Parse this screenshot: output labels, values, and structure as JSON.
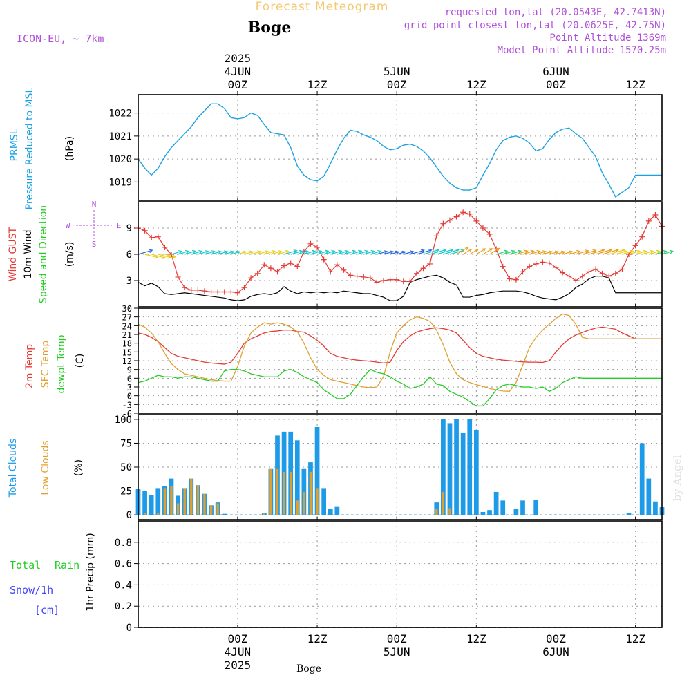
{
  "header": {
    "main_title": "Forecast Meteogram",
    "station": "Boge",
    "model": "ICON-EU, ~ 7km",
    "requested": "requested lon,lat (20.0543E, 42.7413N)",
    "grid_point": "grid point closest lon,lat (20.0625E, 42.75N)",
    "point_altitude": "Point Altitude 1369m",
    "model_altitude": "Model Point Altitude 1570.25m",
    "footer_station": "Boge",
    "watermark": "by Angel"
  },
  "time_axis": {
    "start_hour": -15,
    "end_hour": 64,
    "top_ticks": [
      {
        "hour": 0,
        "lines": [
          "2025",
          "4JUN",
          "00Z"
        ]
      },
      {
        "hour": 12,
        "lines": [
          "12Z"
        ]
      },
      {
        "hour": 24,
        "lines": [
          "5JUN",
          "00Z"
        ]
      },
      {
        "hour": 36,
        "lines": [
          "12Z"
        ]
      },
      {
        "hour": 48,
        "lines": [
          "6JUN",
          "00Z"
        ]
      },
      {
        "hour": 60,
        "lines": [
          "12Z"
        ]
      }
    ],
    "bottom_ticks": [
      {
        "hour": 0,
        "lines": [
          "00Z",
          "4JUN",
          "2025"
        ]
      },
      {
        "hour": 12,
        "lines": [
          "12Z"
        ]
      },
      {
        "hour": 24,
        "lines": [
          "00Z",
          "5JUN"
        ]
      },
      {
        "hour": 36,
        "lines": [
          "12Z"
        ]
      },
      {
        "hour": 48,
        "lines": [
          "00Z",
          "6JUN"
        ]
      },
      {
        "hour": 60,
        "lines": [
          "12Z"
        ]
      }
    ]
  },
  "colors": {
    "pressure": "#1ba1e2",
    "gust": "#e53935",
    "wind": "#000000",
    "t2m": "#e53935",
    "sfc": "#e0a030",
    "dew": "#22cc22",
    "total_cloud": "#1e9be8",
    "low_cloud": "#e0a030",
    "title": "#f5c874",
    "purple": "#b04fd8",
    "rain": "#22cc22",
    "snow": "#4444ff"
  },
  "chart_data": [
    {
      "type": "line",
      "name": "pressure",
      "title": "PRMSL Pressure Reduced to MSL",
      "ylabel": "(hPa)",
      "label_lines": [
        "PRMSL",
        "Pressure Reduced to MSL"
      ],
      "ylim": [
        1018.2,
        1022.8
      ],
      "yticks": [
        1019,
        1020,
        1021,
        1022
      ],
      "x": [
        -15,
        -14,
        -13,
        -12,
        -11,
        -10,
        -9,
        -8,
        -7,
        -6,
        -5,
        -4,
        -3,
        -2,
        -1,
        0,
        1,
        2,
        3,
        4,
        5,
        6,
        7,
        8,
        9,
        10,
        11,
        12,
        13,
        14,
        15,
        16,
        17,
        18,
        19,
        20,
        21,
        22,
        23,
        24,
        25,
        26,
        27,
        28,
        29,
        30,
        31,
        32,
        33,
        34,
        35,
        36,
        37,
        38,
        39,
        40,
        41,
        42,
        43,
        44,
        45,
        46,
        47,
        48,
        49,
        50,
        51,
        52,
        53,
        54,
        55,
        56,
        57,
        58,
        59,
        60,
        61,
        62,
        63,
        64
      ],
      "series": [
        {
          "name": "PRMSL",
          "values": [
            1020.0,
            1019.6,
            1019.3,
            1019.6,
            1020.1,
            1020.5,
            1020.8,
            1021.1,
            1021.4,
            1021.8,
            1022.1,
            1022.4,
            1022.4,
            1022.2,
            1021.8,
            1021.75,
            1021.8,
            1022.0,
            1021.9,
            1021.5,
            1021.15,
            1021.1,
            1021.05,
            1020.5,
            1019.7,
            1019.3,
            1019.1,
            1019.05,
            1019.25,
            1019.8,
            1020.4,
            1020.9,
            1021.25,
            1021.2,
            1021.05,
            1020.95,
            1020.8,
            1020.55,
            1020.4,
            1020.45,
            1020.6,
            1020.65,
            1020.55,
            1020.35,
            1020.05,
            1019.65,
            1019.25,
            1018.95,
            1018.75,
            1018.65,
            1018.65,
            1018.75,
            1019.3,
            1019.8,
            1020.4,
            1020.8,
            1020.95,
            1021.0,
            1020.9,
            1020.7,
            1020.35,
            1020.45,
            1020.85,
            1021.15,
            1021.3,
            1021.35,
            1021.1,
            1020.9,
            1020.5,
            1020.1,
            1019.4,
            1018.9,
            1018.35,
            1018.55,
            1018.75,
            1019.3,
            1019.3,
            1019.3,
            1019.3,
            1019.3
          ]
        }
      ]
    },
    {
      "type": "line",
      "name": "wind",
      "title": "Wind GUST / 10m Wind Speed and Direction",
      "ylabel": "(m/s)",
      "compass": [
        "N",
        "S",
        "W",
        "E"
      ],
      "ylim": [
        0,
        12
      ],
      "yticks": [
        3,
        6,
        9
      ],
      "x": [
        -15,
        -14,
        -13,
        -12,
        -11,
        -10,
        -9,
        -8,
        -7,
        -6,
        -5,
        -4,
        -3,
        -2,
        -1,
        0,
        1,
        2,
        3,
        4,
        5,
        6,
        7,
        8,
        9,
        10,
        11,
        12,
        13,
        14,
        15,
        16,
        17,
        18,
        19,
        20,
        21,
        22,
        23,
        24,
        25,
        26,
        27,
        28,
        29,
        30,
        31,
        32,
        33,
        34,
        35,
        36,
        37,
        38,
        39,
        40,
        41,
        42,
        43,
        44,
        45,
        46,
        47,
        48,
        49,
        50,
        51,
        52,
        53,
        54,
        55,
        56,
        57,
        58,
        59,
        60,
        61,
        62,
        63,
        64
      ],
      "series": [
        {
          "name": "Wind GUST",
          "values": [
            9.0,
            8.7,
            7.9,
            8.0,
            6.8,
            6.0,
            3.4,
            2.2,
            1.9,
            1.9,
            1.8,
            1.7,
            1.7,
            1.7,
            1.7,
            1.6,
            2.2,
            3.3,
            3.8,
            4.8,
            4.4,
            4.0,
            4.7,
            5.0,
            4.6,
            6.3,
            7.2,
            6.8,
            5.4,
            4.0,
            4.8,
            4.2,
            3.6,
            3.5,
            3.4,
            3.3,
            2.8,
            3.0,
            3.1,
            3.1,
            2.9,
            2.9,
            3.8,
            4.4,
            4.9,
            8.1,
            9.5,
            9.9,
            10.3,
            10.8,
            10.6,
            9.8,
            9.0,
            8.3,
            6.6,
            4.6,
            3.2,
            3.1,
            4.0,
            4.6,
            4.9,
            5.1,
            5.0,
            4.5,
            3.9,
            3.5,
            3.0,
            3.5,
            4.0,
            4.3,
            3.8,
            3.5,
            3.8,
            4.3,
            6.0,
            7.0,
            8.0,
            9.8,
            10.5,
            9.2
          ]
        },
        {
          "name": "10m Wind",
          "values": [
            2.8,
            2.4,
            2.7,
            2.3,
            1.5,
            1.4,
            1.5,
            1.6,
            1.5,
            1.4,
            1.3,
            1.2,
            1.1,
            1.0,
            0.8,
            0.7,
            0.8,
            1.2,
            1.4,
            1.5,
            1.4,
            1.6,
            2.3,
            1.8,
            1.5,
            1.7,
            1.6,
            1.7,
            1.6,
            1.7,
            1.6,
            1.8,
            1.7,
            1.6,
            1.5,
            1.5,
            1.3,
            1.1,
            0.7,
            0.7,
            1.2,
            2.8,
            3.1,
            3.3,
            3.5,
            3.6,
            3.3,
            2.8,
            2.5,
            1.1,
            1.1,
            1.3,
            1.4,
            1.6,
            1.7,
            1.8,
            1.8,
            1.8,
            1.7,
            1.5,
            1.2,
            1.0,
            0.9,
            0.8,
            1.1,
            1.5,
            2.2,
            2.6,
            3.2,
            3.5,
            3.5,
            3.3,
            1.6,
            1.6,
            1.6,
            1.6,
            1.6,
            1.6,
            1.6,
            1.6
          ]
        }
      ]
    },
    {
      "type": "line",
      "name": "temperature",
      "title": "2m Temp / SFC Temp / dewpt Temp",
      "ylabel": "(C)",
      "ylim": [
        -6,
        30
      ],
      "yticks": [
        -6,
        -3,
        0,
        3,
        6,
        9,
        12,
        15,
        18,
        21,
        24,
        27,
        30
      ],
      "x": [
        -15,
        -14,
        -13,
        -12,
        -11,
        -10,
        -9,
        -8,
        -7,
        -6,
        -5,
        -4,
        -3,
        -2,
        -1,
        0,
        1,
        2,
        3,
        4,
        5,
        6,
        7,
        8,
        9,
        10,
        11,
        12,
        13,
        14,
        15,
        16,
        17,
        18,
        19,
        20,
        21,
        22,
        23,
        24,
        25,
        26,
        27,
        28,
        29,
        30,
        31,
        32,
        33,
        34,
        35,
        36,
        37,
        38,
        39,
        40,
        41,
        42,
        43,
        44,
        45,
        46,
        47,
        48,
        49,
        50,
        51,
        52,
        53,
        54,
        55,
        56,
        57,
        58,
        59,
        60,
        61,
        62,
        63,
        64
      ],
      "series": [
        {
          "name": "2m Temp",
          "values": [
            21.5,
            21.0,
            20.0,
            18.5,
            16.5,
            14.5,
            13.5,
            13.0,
            12.5,
            12.0,
            11.5,
            11.2,
            11.0,
            10.8,
            11.5,
            14.5,
            18.0,
            19.5,
            20.5,
            21.5,
            22.0,
            22.2,
            22.5,
            22.5,
            22.0,
            21.8,
            20.5,
            19.0,
            17.0,
            14.5,
            13.5,
            13.0,
            12.5,
            12.2,
            12.0,
            11.8,
            11.5,
            11.2,
            11.5,
            15.5,
            18.5,
            20.5,
            21.8,
            22.5,
            23.0,
            23.3,
            23.0,
            22.5,
            21.5,
            19.0,
            16.5,
            14.5,
            13.5,
            13.0,
            12.5,
            12.2,
            12.0,
            11.8,
            11.6,
            11.5,
            11.5,
            11.4,
            12.0,
            15.0,
            17.5,
            19.5,
            20.8,
            21.7,
            22.5,
            23.2,
            23.5,
            23.2,
            22.8,
            21.5,
            20.5,
            19.5,
            19.5,
            19.5,
            19.5,
            19.5
          ]
        },
        {
          "name": "SFC Temp",
          "values": [
            24.5,
            23.5,
            21.5,
            18.5,
            14.5,
            11.0,
            9.0,
            7.5,
            7.0,
            6.5,
            6.0,
            5.5,
            5.2,
            5.0,
            5.0,
            10.0,
            17.0,
            21.5,
            23.5,
            25.0,
            24.5,
            25.0,
            24.5,
            23.5,
            22.0,
            18.0,
            13.0,
            9.0,
            7.0,
            5.5,
            5.0,
            4.5,
            4.0,
            3.5,
            3.0,
            2.8,
            3.0,
            6.5,
            15.0,
            21.5,
            24.0,
            26.0,
            27.0,
            26.5,
            25.5,
            22.5,
            17.5,
            11.5,
            7.5,
            5.5,
            4.5,
            3.8,
            3.2,
            2.5,
            2.0,
            1.6,
            1.5,
            4.5,
            10.5,
            16.5,
            20.0,
            22.5,
            24.5,
            26.5,
            28.0,
            27.5,
            24.5,
            20.0,
            19.5,
            19.5,
            19.5,
            19.5,
            19.5,
            19.5,
            19.5,
            19.5,
            19.5,
            19.5,
            19.5,
            19.5
          ]
        },
        {
          "name": "dewpt Temp",
          "values": [
            4.5,
            5.0,
            6.0,
            7.0,
            6.5,
            6.5,
            6.0,
            6.5,
            6.5,
            6.0,
            5.5,
            5.0,
            5.0,
            8.5,
            9.0,
            9.0,
            8.5,
            7.5,
            7.0,
            6.5,
            6.5,
            6.5,
            8.5,
            9.0,
            8.0,
            6.5,
            5.5,
            4.5,
            2.0,
            0.5,
            -1.0,
            -1.0,
            0.5,
            3.5,
            6.5,
            9.0,
            8.0,
            7.5,
            6.5,
            5.0,
            4.0,
            2.5,
            3.0,
            4.0,
            6.5,
            4.0,
            3.5,
            1.5,
            0.5,
            -0.5,
            -2.0,
            -3.5,
            -3.5,
            -1.0,
            2.0,
            3.5,
            4.0,
            3.5,
            3.0,
            3.0,
            2.5,
            3.0,
            1.5,
            2.5,
            4.5,
            5.5,
            6.5,
            6.0,
            6.0,
            6.0,
            6.0,
            6.0,
            6.0,
            6.0,
            6.0,
            6.0,
            6.0,
            6.0,
            6.0,
            6.0
          ]
        }
      ]
    },
    {
      "type": "bar",
      "name": "clouds",
      "title": "Total Clouds / Low Clouds",
      "ylabel": "(%)",
      "ylim": [
        -5,
        105
      ],
      "yticks": [
        0,
        25,
        50,
        75,
        100
      ],
      "x": [
        -15,
        -14,
        -13,
        -12,
        -11,
        -10,
        -9,
        -8,
        -7,
        -6,
        -5,
        -4,
        -3,
        -2,
        -1,
        0,
        1,
        2,
        3,
        4,
        5,
        6,
        7,
        8,
        9,
        10,
        11,
        12,
        13,
        14,
        15,
        16,
        17,
        18,
        19,
        20,
        21,
        22,
        23,
        24,
        25,
        26,
        27,
        28,
        29,
        30,
        31,
        32,
        33,
        34,
        35,
        36,
        37,
        38,
        39,
        40,
        41,
        42,
        43,
        44,
        45,
        46,
        47,
        48,
        49,
        50,
        51,
        52,
        53,
        54,
        55,
        56,
        57,
        58,
        59,
        60,
        61,
        62,
        63,
        64
      ],
      "series": [
        {
          "name": "Total Clouds",
          "values": [
            27,
            25,
            21,
            28,
            30,
            38,
            20,
            28,
            38,
            31,
            22,
            10,
            13,
            1,
            0,
            0,
            0,
            0,
            0,
            2,
            48,
            83,
            87,
            87,
            78,
            48,
            55,
            92,
            28,
            6,
            9,
            0,
            0,
            0,
            0,
            0,
            0,
            0,
            0,
            0,
            0,
            0,
            0,
            0,
            0,
            13,
            100,
            96,
            100,
            86,
            100,
            89,
            3,
            5,
            24,
            15,
            0,
            6,
            15,
            0,
            16,
            0,
            0,
            0,
            0,
            0,
            0,
            0,
            0,
            0,
            0,
            0,
            0,
            0,
            2,
            0,
            75,
            38,
            14,
            8
          ]
        },
        {
          "name": "Low Clouds",
          "values": [
            0,
            2,
            0,
            2,
            28,
            30,
            12,
            28,
            38,
            31,
            22,
            10,
            12,
            0,
            0,
            0,
            0,
            0,
            0,
            2,
            48,
            48,
            45,
            45,
            15,
            24,
            45,
            28,
            0,
            0,
            0,
            0,
            0,
            0,
            0,
            0,
            0,
            0,
            0,
            0,
            0,
            0,
            0,
            0,
            0,
            6,
            24,
            7,
            0,
            0,
            0,
            0,
            0,
            0,
            0,
            0,
            0,
            0,
            0,
            0,
            0,
            0,
            0,
            0,
            0,
            0,
            0,
            0,
            0,
            0,
            0,
            0,
            0,
            0,
            0,
            0,
            0,
            0,
            0,
            0
          ]
        }
      ]
    },
    {
      "type": "bar",
      "name": "precip",
      "title": "1hr Precip",
      "ylabel": "1hr Precip (mm)",
      "legend": [
        "Total",
        "Rain",
        "Snow/1h",
        "[cm]"
      ],
      "ylim": [
        0,
        1
      ],
      "yticks": [
        0,
        0.2,
        0.4,
        0.6,
        0.8
      ],
      "x": [
        -15,
        64
      ],
      "series": [
        {
          "name": "Total",
          "values": [
            0,
            0
          ]
        },
        {
          "name": "Rain",
          "values": [
            0,
            0
          ]
        },
        {
          "name": "Snow/1h",
          "values": [
            0,
            0
          ]
        }
      ]
    }
  ]
}
